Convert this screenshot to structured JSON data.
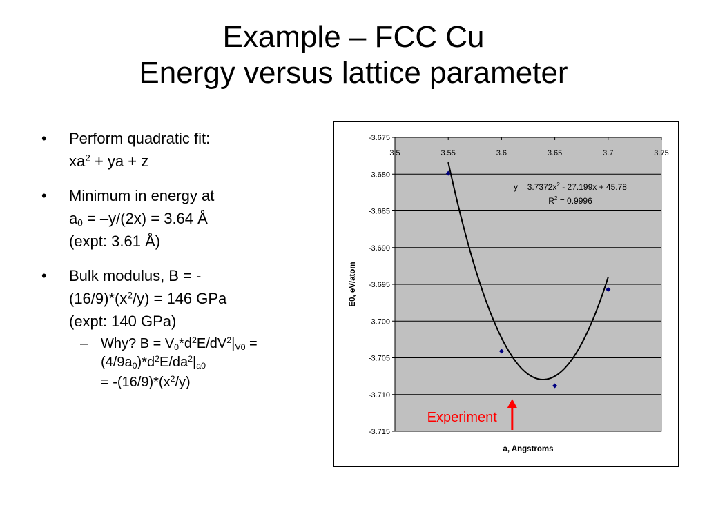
{
  "title": {
    "line1": "Example – FCC Cu",
    "line2": "Energy versus lattice parameter"
  },
  "bullets": {
    "b1": {
      "marker": "•",
      "line1": "Perform quadratic fit:",
      "line2": {
        "a": "xa",
        "b": "2",
        "c": " + ya + z"
      }
    },
    "b2": {
      "marker": "•",
      "line1": "Minimum in energy at",
      "line2": {
        "a": "a",
        "b": "0",
        "c": " = –y/(2x) = 3.64 Å"
      },
      "line3": "(expt: 3.61 Å)"
    },
    "b3": {
      "marker": "•",
      "line1": "Bulk modulus, B = -",
      "line2": {
        "a": "(16/9)*(x",
        "b": "2",
        "c": "/y) = 146 GPa"
      },
      "line3": "(expt: 140 GPa)",
      "sub": {
        "marker": "–",
        "p1": "Why? B = V",
        "p2": "0",
        "p3": "*d",
        "p4": "2",
        "p5": "E/dV",
        "p6": "2",
        "p7": "|",
        "p8": "V0",
        "p9": " =",
        "q1": "(4/9a",
        "q2": "0",
        "q3": ")*d",
        "q4": "2",
        "q5": "E/da",
        "q6": "2",
        "q7": "|",
        "q8": "a0",
        "r1": "= -(16/9)*(x",
        "r2": "2",
        "r3": "/y)"
      }
    }
  },
  "chart_data": {
    "type": "scatter",
    "title": "",
    "xlabel": "a, Angstroms",
    "ylabel": "E0, eV/atom",
    "xlim": [
      3.5,
      3.75
    ],
    "ylim": [
      -3.715,
      -3.675
    ],
    "x_ticks": [
      "3.5",
      "3.55",
      "3.6",
      "3.65",
      "3.7",
      "3.75"
    ],
    "y_ticks": [
      "-3.675",
      "-3.680",
      "-3.685",
      "-3.690",
      "-3.695",
      "-3.700",
      "-3.705",
      "-3.710",
      "-3.715"
    ],
    "x_axis_position": "top",
    "grid": "horizontal",
    "plot_background": "#c0c0c0",
    "series": [
      {
        "x": [
          3.55,
          3.6,
          3.65,
          3.7
        ],
        "y": [
          -3.6799,
          -3.7041,
          -3.7088,
          -3.6957
        ],
        "marker_color": "#000080"
      }
    ],
    "trendline": {
      "type": "polynomial",
      "coefficients": [
        3.7372,
        -27.199,
        45.78
      ],
      "color": "#000000",
      "equation": {
        "a": "y = 3.7372x",
        "b": "2",
        "c": " - 27.199x + 45.78"
      },
      "r2": {
        "a": "R",
        "b": "2",
        "c": " = 0.9996"
      }
    },
    "annotation": {
      "text": "Experiment",
      "x": 3.61,
      "color": "#ff0000"
    }
  }
}
